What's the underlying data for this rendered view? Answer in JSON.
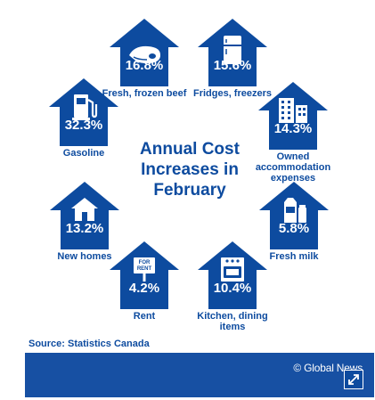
{
  "title": "Annual Cost Increases in February",
  "items": [
    {
      "value": "16.8%",
      "label": "Fresh, frozen beef",
      "icon": "meat-icon"
    },
    {
      "value": "15.6%",
      "label": "Fridges, freezers",
      "icon": "fridge-icon"
    },
    {
      "value": "32.3%",
      "label": "Gasoline",
      "icon": "gas-pump-icon"
    },
    {
      "value": "14.3%",
      "label": "Owned accommodation expenses",
      "icon": "building-icon"
    },
    {
      "value": "13.2%",
      "label": "New homes",
      "icon": "house-icon"
    },
    {
      "value": "5.8%",
      "label": "Fresh milk",
      "icon": "milk-icon"
    },
    {
      "value": "4.2%",
      "label": "Rent",
      "icon": "for-rent-sign-icon"
    },
    {
      "value": "10.4%",
      "label": "Kitchen, dining items",
      "icon": "kitchen-icon"
    }
  ],
  "source": "Source: Statistics Canada",
  "footer": {
    "brand": "© Global News"
  },
  "sign_text": "FOR RENT",
  "colors": {
    "house_blue": "#0d4b9f",
    "footer_blue": "#1750a3",
    "white": "#ffffff"
  }
}
